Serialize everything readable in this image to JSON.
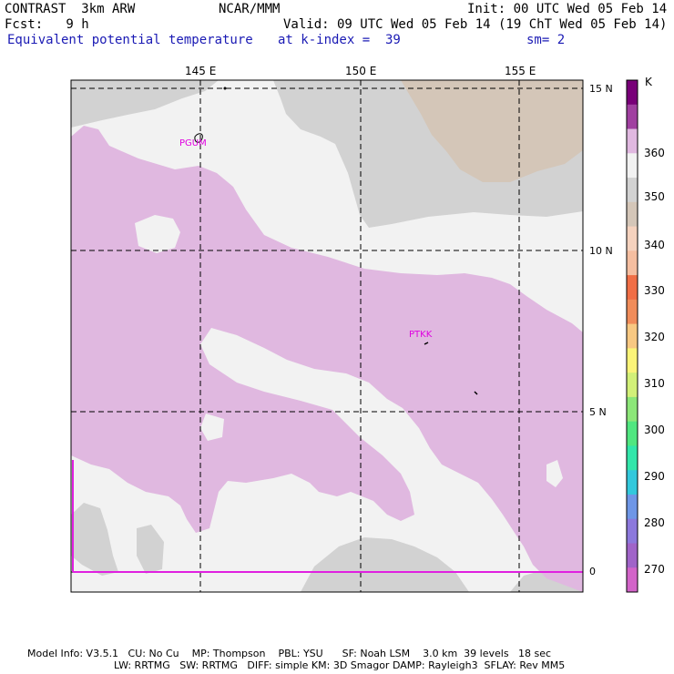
{
  "header": {
    "model": "CONTRAST  3km ARW",
    "org": "NCAR/MMM",
    "init": "Init: 00 UTC Wed 05 Feb 14",
    "fcst": "Fcst:   9 h",
    "valid": "Valid: 09 UTC Wed 05 Feb 14 (19 ChT Wed 05 Feb 14)",
    "field": "Equivalent potential temperature",
    "level": "at k-index =  39",
    "smooth": "sm= 2"
  },
  "map": {
    "lon_labels": [
      "145 E",
      "150 E",
      "155 E"
    ],
    "lat_labels": [
      "15 N",
      "10 N",
      "5 N",
      "0"
    ],
    "stations": [
      {
        "id": "PGUM"
      },
      {
        "id": "PTKK"
      }
    ]
  },
  "colorbar": {
    "unit": "K",
    "labels": [
      "360",
      "350",
      "340",
      "330",
      "320",
      "310",
      "300",
      "290",
      "280",
      "270"
    ],
    "colors_top_to_bottom": [
      "#780078",
      "#a040a0",
      "#e0b8e0",
      "#f2f2f2",
      "#d2d2d2",
      "#d4c6b8",
      "#f5d2be",
      "#f5bea0",
      "#f06e46",
      "#f08c5a",
      "#f8c882",
      "#fbf478",
      "#d2f078",
      "#8ce678",
      "#50e680",
      "#32e6aa",
      "#32c8dc",
      "#6e96e6",
      "#8c78dc",
      "#a064c8",
      "#d264c8"
    ]
  },
  "footer": {
    "line1": "Model Info: V3.5.1   CU: No Cu    MP: Thompson    PBL: YSU      SF: Noah LSM    3.0 km  39 levels   18 sec",
    "line2": "LW: RRTMG   SW: RRTMG   DIFF: simple KM: 3D Smagor DAMP: Rayleigh3  SFLAY: Rev MM5"
  }
}
